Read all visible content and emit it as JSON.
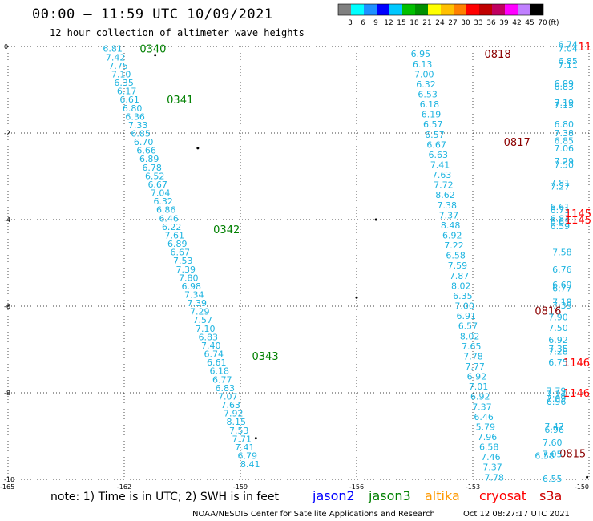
{
  "header": {
    "title": "00:00 – 11:59 UTC 10/09/2021",
    "subtitle": "12 hour collection of altimeter wave heights"
  },
  "colorbar": {
    "unit": "(ft)",
    "ticks": [
      "3",
      "6",
      "9",
      "12",
      "15",
      "18",
      "21",
      "24",
      "27",
      "30",
      "33",
      "36",
      "39",
      "42",
      "45",
      "70"
    ],
    "colors": [
      "#808080",
      "#00ffff",
      "#1e90ff",
      "#0000ff",
      "#00c8ff",
      "#00c000",
      "#009000",
      "#ffff00",
      "#ffc000",
      "#ff8000",
      "#ff0000",
      "#c00000",
      "#c00060",
      "#ff00ff",
      "#c080ff",
      "#000000"
    ]
  },
  "map": {
    "x_ticks": [
      "-165",
      "-162",
      "-159",
      "-156",
      "-153",
      "-150"
    ],
    "y_ticks": [
      "0",
      "-2",
      "-4",
      "-6",
      "-8",
      "-10"
    ],
    "x_range": [
      -165,
      -150
    ],
    "y_range": [
      -10,
      0
    ],
    "grid": "dotted",
    "satellite_colors": {
      "jason2": "#0000ff",
      "jason3": "#008000",
      "altika": "#ff9900",
      "cryosat": "#ff0000",
      "s3a": "#cc0000",
      "swh": "#1eb4e0",
      "pass_time_dark": "#8b0000"
    },
    "tracks": [
      {
        "id": "track-jason3-west",
        "satellite": "jason3",
        "pass_times": [
          {
            "label": "0340",
            "lon": -161.6,
            "lat": -0.05
          },
          {
            "label": "0341",
            "lon": -160.9,
            "lat": -1.22
          },
          {
            "label": "0342",
            "lon": -159.7,
            "lat": -4.22
          },
          {
            "label": "0343",
            "lon": -158.7,
            "lat": -7.15
          }
        ],
        "start": {
          "lon": -162.55,
          "lat": -0.05
        },
        "end": {
          "lon": -159.0,
          "lat": -9.65
        },
        "values": [
          "6.81",
          "7.42",
          "7.75",
          "7.10",
          "6.35",
          "6.17",
          "6.61",
          "6.80",
          "6.36",
          "7.33",
          "6.85",
          "6.70",
          "6.66",
          "6.89",
          "6.78",
          "6.52",
          "6.67",
          "7.04",
          "6.32",
          "6.86",
          "6.46",
          "6.22",
          "7.61",
          "6.89",
          "6.67",
          "7.53",
          "7.39",
          "7.80",
          "6.98",
          "7.34",
          "7.39",
          "7.29",
          "7.57",
          "7.10",
          "6.83",
          "7.40",
          "6.74",
          "6.61",
          "6.18",
          "6.77",
          "6.83",
          "7.07",
          "7.63",
          "7.92",
          "8.15",
          "7.53",
          "7.71",
          "7.41",
          "6.79",
          "8.41"
        ]
      },
      {
        "id": "track-s3a-east",
        "satellite": "s3a",
        "pass_times": [
          {
            "label": "0818",
            "lon": -152.7,
            "lat": -0.17
          },
          {
            "label": "0817",
            "lon": -152.2,
            "lat": -2.2
          },
          {
            "label": "0816",
            "lon": -151.4,
            "lat": -6.1
          },
          {
            "label": "0815",
            "lon": -150.7,
            "lat": -9.4
          }
        ],
        "start": {
          "lon": -154.6,
          "lat": -0.17
        },
        "end": {
          "lon": -152.7,
          "lat": -9.95
        },
        "values": [
          "6.95",
          "6.13",
          "7.00",
          "6.32",
          "6.53",
          "6.18",
          "6.19",
          "6.57",
          "6.57",
          "6.67",
          "6.63",
          "7.41",
          "7.63",
          "7.72",
          "8.62",
          "7.38",
          "7.37",
          "8.48",
          "6.92",
          "7.22",
          "6.58",
          "7.59",
          "7.87",
          "8.02",
          "6.35",
          "7.00",
          "6.91",
          "6.57",
          "8.02",
          "7.65",
          "7.78",
          "7.77",
          "6.92",
          "7.01",
          "6.92",
          "7.37",
          "6.46",
          "5.79",
          "7.96",
          "6.58",
          "7.46",
          "7.37",
          "7.78"
        ]
      },
      {
        "id": "track-cryosat-east",
        "satellite": "cryosat",
        "pass_times": [
          {
            "label": "11",
            "lon": -150.05,
            "lat": 0.0
          },
          {
            "label": "1145",
            "lon": -150.0,
            "lat": -3.85
          },
          {
            "label": "1145",
            "lon": -150.0,
            "lat": -4.0
          },
          {
            "label": "1146",
            "lon": -150.6,
            "lat": -7.3
          },
          {
            "label": "1146",
            "lon": -150.6,
            "lat": -8.0
          }
        ],
        "points": [
          {
            "v": "6.74",
            "lon": -150.8,
            "lat": 0.05
          },
          {
            "v": "7.04",
            "lon": -150.8,
            "lat": -0.05
          },
          {
            "v": "6.85",
            "lon": -150.8,
            "lat": -0.33
          },
          {
            "v": "7.11",
            "lon": -150.8,
            "lat": -0.43
          },
          {
            "v": "6.99",
            "lon": -150.9,
            "lat": -0.85
          },
          {
            "v": "6.83",
            "lon": -150.9,
            "lat": -0.93
          },
          {
            "v": "7.19",
            "lon": -150.9,
            "lat": -1.3
          },
          {
            "v": "7.15",
            "lon": -150.9,
            "lat": -1.35
          },
          {
            "v": "6.80",
            "lon": -150.9,
            "lat": -1.8
          },
          {
            "v": "7.38",
            "lon": -150.9,
            "lat": -2.0
          },
          {
            "v": "6.85",
            "lon": -150.9,
            "lat": -2.18
          },
          {
            "v": "7.06",
            "lon": -150.9,
            "lat": -2.35
          },
          {
            "v": "7.29",
            "lon": -150.9,
            "lat": -2.65
          },
          {
            "v": "7.50",
            "lon": -150.9,
            "lat": -2.73
          },
          {
            "v": "7.81",
            "lon": -151.0,
            "lat": -3.15
          },
          {
            "v": "7.27",
            "lon": -151.0,
            "lat": -3.23
          },
          {
            "v": "6.61",
            "lon": -151.0,
            "lat": -3.7
          },
          {
            "v": "6.71",
            "lon": -151.0,
            "lat": -3.78
          },
          {
            "v": "6.83",
            "lon": -151.0,
            "lat": -3.97
          },
          {
            "v": "6.63",
            "lon": -151.0,
            "lat": -4.05
          },
          {
            "v": "6.59",
            "lon": -151.0,
            "lat": -4.15
          },
          {
            "v": "7.58",
            "lon": -150.95,
            "lat": -4.75
          },
          {
            "v": "6.76",
            "lon": -150.95,
            "lat": -5.15
          },
          {
            "v": "6.69",
            "lon": -150.95,
            "lat": -5.5
          },
          {
            "v": "6.77",
            "lon": -150.95,
            "lat": -5.58
          },
          {
            "v": "7.18",
            "lon": -150.95,
            "lat": -5.9
          },
          {
            "v": "7.39",
            "lon": -150.95,
            "lat": -5.98
          },
          {
            "v": "7.90",
            "lon": -151.05,
            "lat": -6.25
          },
          {
            "v": "7.50",
            "lon": -151.05,
            "lat": -6.5
          },
          {
            "v": "6.92",
            "lon": -151.05,
            "lat": -6.78
          },
          {
            "v": "7.35",
            "lon": -151.05,
            "lat": -6.98
          },
          {
            "v": "7.28",
            "lon": -151.05,
            "lat": -7.05
          },
          {
            "v": "6.75",
            "lon": -151.05,
            "lat": -7.3
          },
          {
            "v": "7.79",
            "lon": -151.1,
            "lat": -7.95
          },
          {
            "v": "7.14",
            "lon": -151.1,
            "lat": -8.03
          },
          {
            "v": "7.09",
            "lon": -151.1,
            "lat": -8.13
          },
          {
            "v": "6.96",
            "lon": -151.1,
            "lat": -8.2
          },
          {
            "v": "7.47",
            "lon": -151.15,
            "lat": -8.78
          },
          {
            "v": "6.96",
            "lon": -151.15,
            "lat": -8.85
          },
          {
            "v": "7.60",
            "lon": -151.2,
            "lat": -9.15
          },
          {
            "v": "6.58",
            "lon": -151.4,
            "lat": -9.45
          },
          {
            "v": "7.05",
            "lon": -151.2,
            "lat": -9.42
          },
          {
            "v": "6.55",
            "lon": -151.2,
            "lat": -9.98
          }
        ]
      }
    ]
  },
  "note": "note:  1) Time is in UTC;  2) SWH is in feet",
  "legend": [
    {
      "name": "jason2",
      "color": "#0000ff"
    },
    {
      "name": "jason3",
      "color": "#008000"
    },
    {
      "name": "altika",
      "color": "#ff9900"
    },
    {
      "name": "cryosat",
      "color": "#ff0000"
    },
    {
      "name": "s3a",
      "color": "#cc0000"
    }
  ],
  "credit": "NOAA/NESDIS Center for Satellite Applications and Research",
  "timestamp": "Oct 12 08:27:17 UTC 2021"
}
